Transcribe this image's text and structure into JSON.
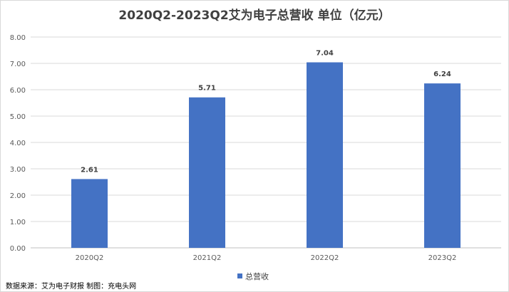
{
  "chart_data": {
    "type": "bar",
    "title": "2020Q2-2023Q2艾为电子总营收 单位（亿元）",
    "categories": [
      "2020Q2",
      "2021Q2",
      "2022Q2",
      "2023Q2"
    ],
    "series": [
      {
        "name": "总营收",
        "values": [
          2.61,
          5.71,
          7.04,
          6.24
        ],
        "color": "#4472c4"
      }
    ],
    "data_labels": [
      "2.61",
      "5.71",
      "7.04",
      "6.24"
    ],
    "y_ticks": [
      "0.00",
      "1.00",
      "2.00",
      "3.00",
      "4.00",
      "5.00",
      "6.00",
      "7.00",
      "8.00"
    ],
    "ylim": [
      0,
      8
    ],
    "grid": true,
    "legend_position": "bottom"
  },
  "source_note": "数据来源：艾为电子财报  制图：充电头网"
}
